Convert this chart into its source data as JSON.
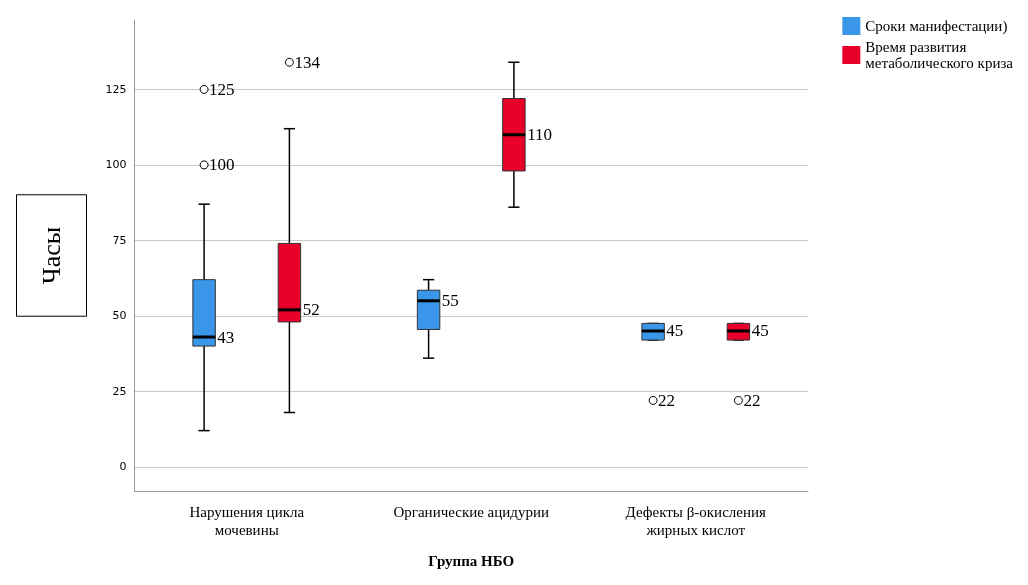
{
  "chart_data": {
    "type": "box",
    "xlabel": "Группа НБО",
    "ylabel": "Часы",
    "categories": [
      "Нарушения цикла мочевины",
      "Органические ацидурии",
      "Дефекты β-окисления жирных кислот"
    ],
    "series": [
      {
        "name": "Сроки манифестации)",
        "color": "#3a96e8",
        "boxes": [
          {
            "low": 12,
            "q1": 40,
            "median": 43,
            "q3": 62,
            "high": 87,
            "outliers": [
              100,
              125
            ]
          },
          {
            "low": 36,
            "q1": 45.5,
            "median": 55,
            "q3": 58.5,
            "high": 62
          },
          {
            "low": 42,
            "q1": 42,
            "median": 45,
            "q3": 47.5,
            "high": 47.5,
            "outliers": [
              22
            ]
          }
        ]
      },
      {
        "name": "Время развития метаболического криза",
        "color": "#e8002a",
        "boxes": [
          {
            "low": 18,
            "q1": 48,
            "median": 52,
            "q3": 74,
            "high": 112,
            "outliers": [
              134
            ]
          },
          {
            "low": 86,
            "q1": 98,
            "median": 110,
            "q3": 122,
            "high": 134
          },
          {
            "low": 42,
            "q1": 42,
            "median": 45,
            "q3": 47.5,
            "high": 47.5,
            "outliers": [
              22
            ]
          }
        ]
      }
    ],
    "annotations": [
      "43",
      "100",
      "125",
      "55",
      "45",
      "22",
      "52",
      "134",
      "110",
      "45",
      "22"
    ],
    "ylim": [
      -8,
      148
    ],
    "yticks": [
      0,
      25,
      50,
      75,
      100,
      125
    ],
    "grid": "y",
    "legend": "top right",
    "data_labels": true
  }
}
